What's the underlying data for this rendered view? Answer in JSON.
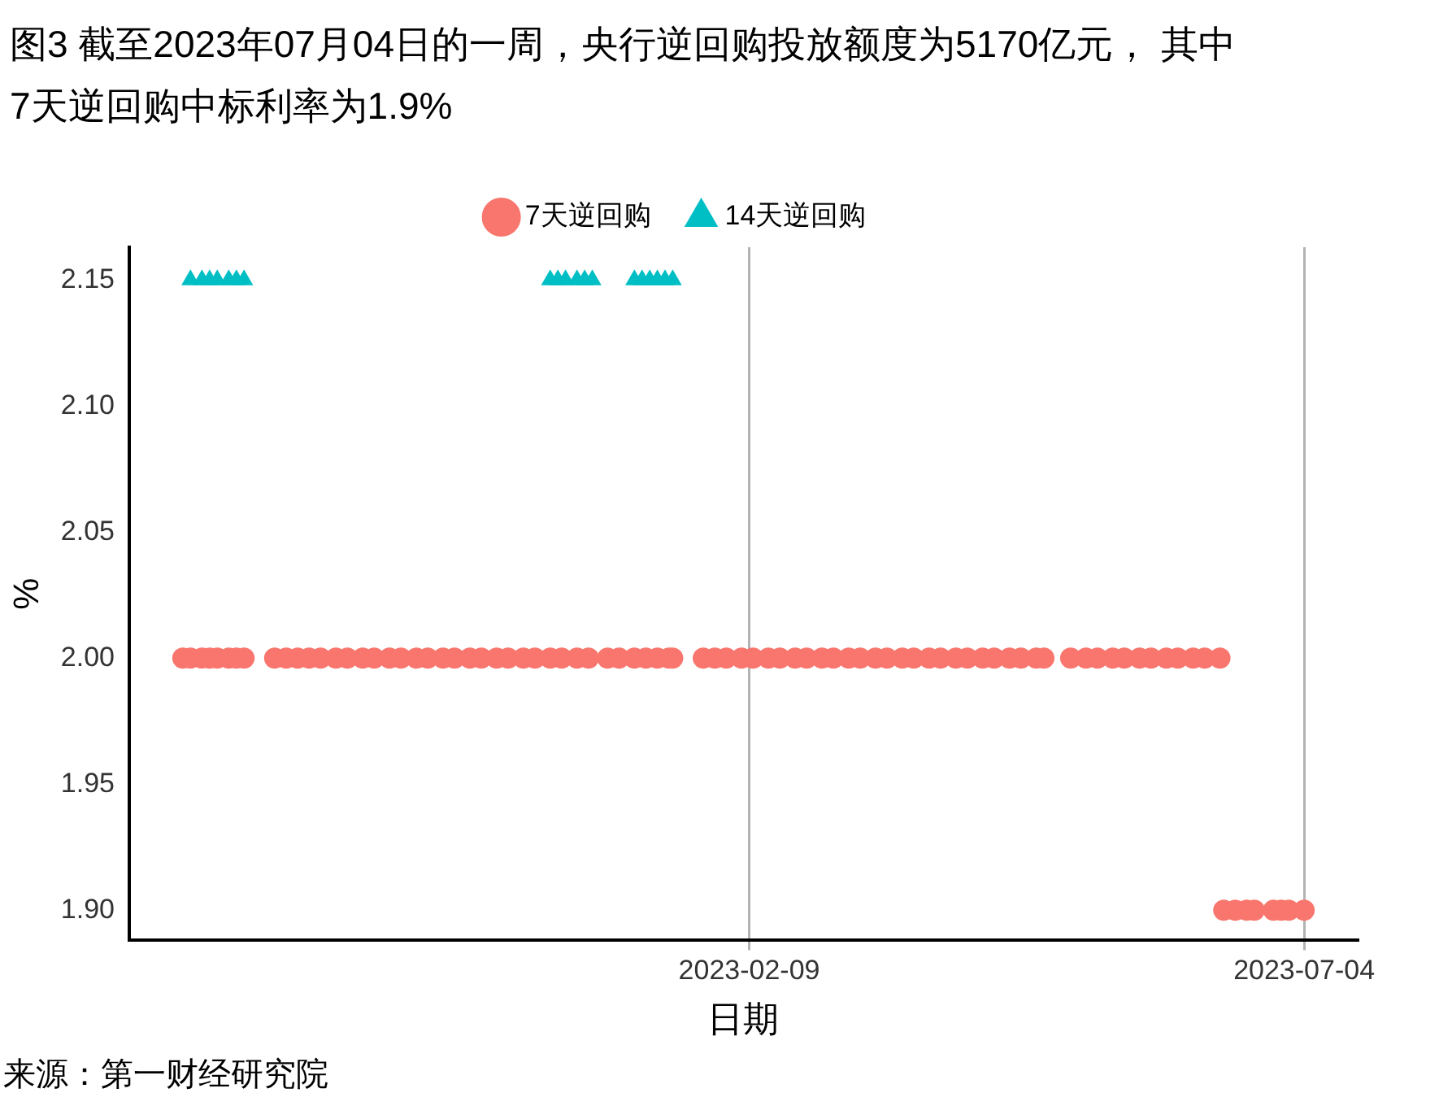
{
  "chart_data": {
    "type": "scatter",
    "title": "图3  截至2023年07月04日的一周，央行逆回购投放额度为5170亿元， 其中7天逆回购中标利率为1.9%",
    "xlabel": "日期",
    "ylabel": "%",
    "annotations": [
      "来源：第一财经研究院"
    ],
    "legend": "top",
    "grid": "x",
    "xlim": [
      "2022-08-31",
      "2023-07-18"
    ],
    "xticks": [
      "2023-02-09",
      "2023-07-04"
    ],
    "ylim": [
      1.888,
      2.163
    ],
    "yticks": [
      {
        "value": 1.9,
        "label": "1.90"
      },
      {
        "value": 1.95,
        "label": "1.95"
      },
      {
        "value": 2,
        "label": "2.00"
      },
      {
        "value": 2.05,
        "label": "2.05"
      },
      {
        "value": 2.1,
        "label": "2.10"
      },
      {
        "value": 2.15,
        "label": "2.15"
      }
    ],
    "series": [
      {
        "name": "7天逆回购",
        "color": "#f8766d",
        "marker": "circle",
        "x": [
          "2022-09-14",
          "2022-09-16",
          "2022-09-19",
          "2022-09-21",
          "2022-09-23",
          "2022-09-26",
          "2022-09-28",
          "2022-09-30",
          "2022-10-08",
          "2022-10-11",
          "2022-10-14",
          "2022-10-17",
          "2022-10-20",
          "2022-10-24",
          "2022-10-27",
          "2022-10-31",
          "2022-11-03",
          "2022-11-07",
          "2022-11-10",
          "2022-11-14",
          "2022-11-17",
          "2022-11-21",
          "2022-11-24",
          "2022-11-28",
          "2022-12-01",
          "2022-12-05",
          "2022-12-08",
          "2022-12-12",
          "2022-12-15",
          "2022-12-19",
          "2022-12-22",
          "2022-12-26",
          "2022-12-29",
          "2023-01-03",
          "2023-01-06",
          "2023-01-10",
          "2023-01-13",
          "2023-01-16",
          "2023-01-19",
          "2023-01-20",
          "2023-01-28",
          "2023-01-31",
          "2023-02-03",
          "2023-02-07",
          "2023-02-10",
          "2023-02-14",
          "2023-02-17",
          "2023-02-21",
          "2023-02-24",
          "2023-02-28",
          "2023-03-03",
          "2023-03-07",
          "2023-03-10",
          "2023-03-14",
          "2023-03-17",
          "2023-03-21",
          "2023-03-24",
          "2023-03-28",
          "2023-03-31",
          "2023-04-04",
          "2023-04-07",
          "2023-04-11",
          "2023-04-14",
          "2023-04-18",
          "2023-04-21",
          "2023-04-25",
          "2023-04-27",
          "2023-05-04",
          "2023-05-08",
          "2023-05-11",
          "2023-05-15",
          "2023-05-18",
          "2023-05-22",
          "2023-05-25",
          "2023-05-29",
          "2023-06-01",
          "2023-06-05",
          "2023-06-08",
          "2023-06-12",
          "2023-06-13",
          "2023-06-16",
          "2023-06-19",
          "2023-06-21",
          "2023-06-26",
          "2023-06-28",
          "2023-06-30",
          "2023-07-04"
        ],
        "values": [
          2,
          2,
          2,
          2,
          2,
          2,
          2,
          2,
          2,
          2,
          2,
          2,
          2,
          2,
          2,
          2,
          2,
          2,
          2,
          2,
          2,
          2,
          2,
          2,
          2,
          2,
          2,
          2,
          2,
          2,
          2,
          2,
          2,
          2,
          2,
          2,
          2,
          2,
          2,
          2,
          2,
          2,
          2,
          2,
          2,
          2,
          2,
          2,
          2,
          2,
          2,
          2,
          2,
          2,
          2,
          2,
          2,
          2,
          2,
          2,
          2,
          2,
          2,
          2,
          2,
          2,
          2,
          2,
          2,
          2,
          2,
          2,
          2,
          2,
          2,
          2,
          2,
          2,
          2,
          1.9,
          1.9,
          1.9,
          1.9,
          1.9,
          1.9,
          1.9,
          1.9
        ]
      },
      {
        "name": "14天逆回购",
        "color": "#00bfc4",
        "marker": "triangle",
        "x": [
          "2022-09-16",
          "2022-09-19",
          "2022-09-21",
          "2022-09-23",
          "2022-09-26",
          "2022-09-28",
          "2022-09-30",
          "2022-12-19",
          "2022-12-21",
          "2022-12-23",
          "2022-12-26",
          "2022-12-28",
          "2022-12-30",
          "2023-01-10",
          "2023-01-12",
          "2023-01-14",
          "2023-01-16",
          "2023-01-18",
          "2023-01-20"
        ],
        "values": [
          2.15,
          2.15,
          2.15,
          2.15,
          2.15,
          2.15,
          2.15,
          2.15,
          2.15,
          2.15,
          2.15,
          2.15,
          2.15,
          2.15,
          2.15,
          2.15,
          2.15,
          2.15,
          2.15
        ]
      }
    ]
  }
}
